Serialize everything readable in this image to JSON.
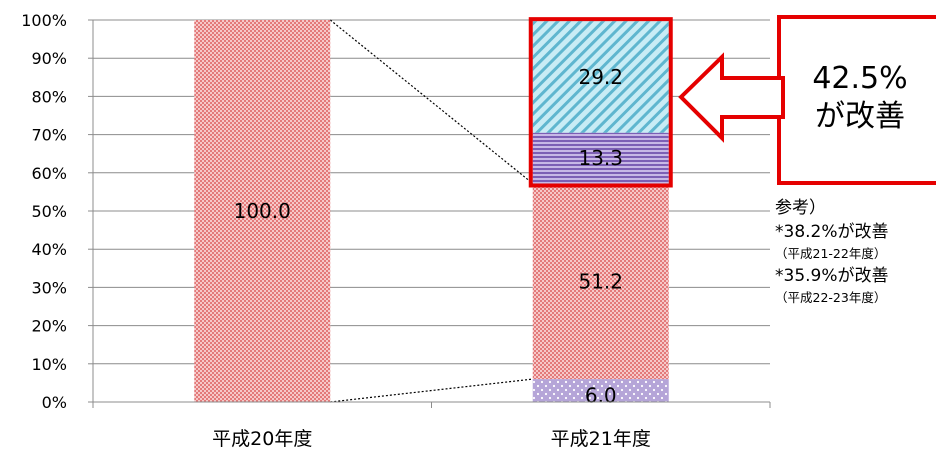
{
  "chart_data": {
    "type": "bar",
    "stacked": true,
    "categories": [
      "平成20年度",
      "平成21年度"
    ],
    "series": [
      {
        "key": "s1",
        "category_values": [
          0,
          6.0
        ],
        "label": "6.0",
        "fill": "#b7a9d6"
      },
      {
        "key": "s2",
        "category_values": [
          100.0,
          51.2
        ],
        "label": "51.2 / 100.0",
        "fill": "#f4b8b8"
      },
      {
        "key": "s3",
        "category_values": [
          0,
          13.3
        ],
        "label": "13.3",
        "fill": "#9f87c9"
      },
      {
        "key": "s4",
        "category_values": [
          0,
          29.2
        ],
        "label": "29.2",
        "fill": "#aedbe8"
      }
    ],
    "data_labels": {
      "heisei20": "100.0",
      "heisei21": [
        "6.0",
        "51.2",
        "13.3",
        "29.2"
      ]
    },
    "y_ticks": [
      "0%",
      "10%",
      "20%",
      "30%",
      "40%",
      "50%",
      "60%",
      "70%",
      "80%",
      "90%",
      "100%"
    ],
    "ylim": [
      0,
      100
    ],
    "grid": true,
    "title": "",
    "xlabel": "",
    "ylabel": ""
  },
  "callout": {
    "line1": "42.5%",
    "line2": "が改善"
  },
  "note": {
    "heading": "参考）",
    "item1": "*38.2%が改善",
    "item1_period": "（平成21-22年度）",
    "item2": "*35.9%が改善",
    "item2_period": "（平成22-23年度）"
  },
  "colors": {
    "highlight": "#e50000",
    "grid": "#8c8c8c",
    "pink_pattern": "#e06666"
  }
}
